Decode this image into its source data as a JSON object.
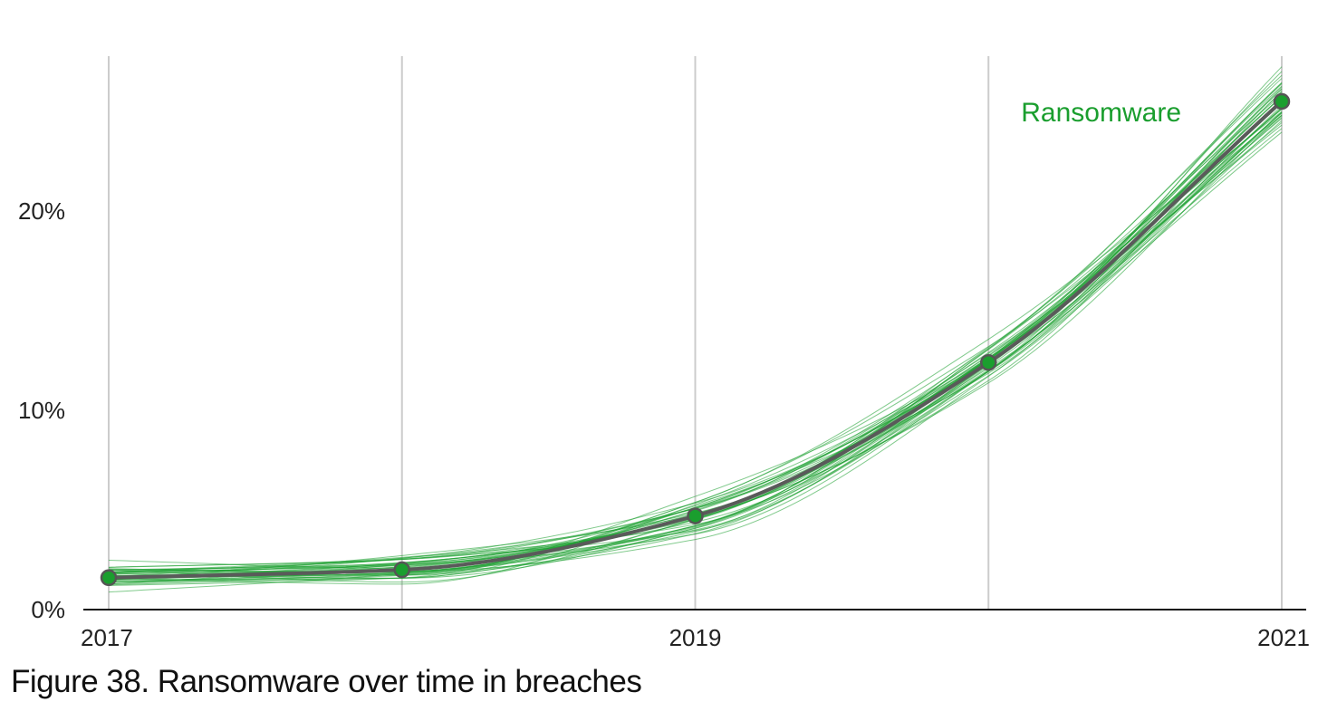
{
  "caption": "Figure 38. Ransomware over time in breaches",
  "colors": {
    "series": "#1a9e2e",
    "median_line": "#5a5a5a",
    "point_fill": "#1a9e2e",
    "point_stroke": "#555555",
    "gridline": "#cccccc",
    "axis": "#111111",
    "text": "#222222"
  },
  "chart_data": {
    "type": "line",
    "title": "",
    "xlabel": "",
    "ylabel": "",
    "x": [
      2017,
      2018,
      2019,
      2020,
      2021
    ],
    "series": [
      {
        "name": "Ransomware",
        "values": [
          1.6,
          2.0,
          4.7,
          12.4,
          25.5
        ]
      }
    ],
    "uncertainty_draws": 40,
    "xlim": [
      2016.9,
      2021.1
    ],
    "ylim": [
      0,
      27.8
    ],
    "x_ticks": [
      2017,
      2019,
      2021
    ],
    "x_tick_labels": [
      "2017",
      "2019",
      "2021"
    ],
    "y_ticks": [
      0,
      10,
      20
    ],
    "y_tick_labels": [
      "0%",
      "10%",
      "20%"
    ],
    "vertical_gridlines_at": [
      2017,
      2018,
      2019,
      2020,
      2021
    ],
    "grid": true,
    "legend": "direct label near end of series"
  }
}
